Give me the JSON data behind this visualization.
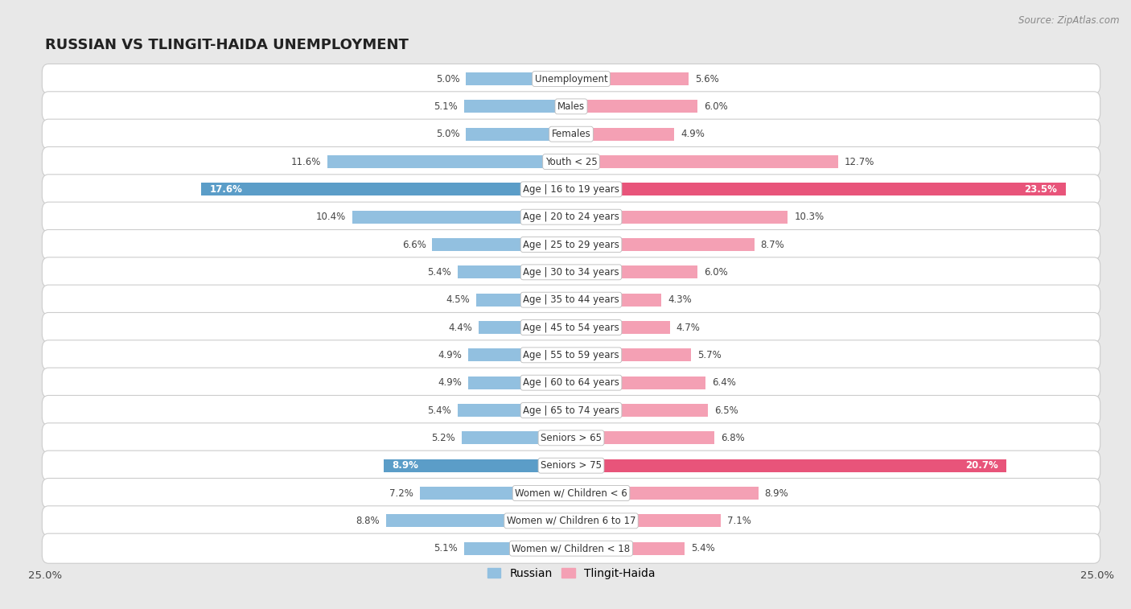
{
  "title": "RUSSIAN VS TLINGIT-HAIDA UNEMPLOYMENT",
  "source": "Source: ZipAtlas.com",
  "categories": [
    "Unemployment",
    "Males",
    "Females",
    "Youth < 25",
    "Age | 16 to 19 years",
    "Age | 20 to 24 years",
    "Age | 25 to 29 years",
    "Age | 30 to 34 years",
    "Age | 35 to 44 years",
    "Age | 45 to 54 years",
    "Age | 55 to 59 years",
    "Age | 60 to 64 years",
    "Age | 65 to 74 years",
    "Seniors > 65",
    "Seniors > 75",
    "Women w/ Children < 6",
    "Women w/ Children 6 to 17",
    "Women w/ Children < 18"
  ],
  "russian": [
    5.0,
    5.1,
    5.0,
    11.6,
    17.6,
    10.4,
    6.6,
    5.4,
    4.5,
    4.4,
    4.9,
    4.9,
    5.4,
    5.2,
    8.9,
    7.2,
    8.8,
    5.1
  ],
  "tlingit": [
    5.6,
    6.0,
    4.9,
    12.7,
    23.5,
    10.3,
    8.7,
    6.0,
    4.3,
    4.7,
    5.7,
    6.4,
    6.5,
    6.8,
    20.7,
    8.9,
    7.1,
    5.4
  ],
  "russian_color": "#92c0e0",
  "tlingit_color": "#f4a0b4",
  "russian_highlight_color": "#5b9dc8",
  "tlingit_highlight_color": "#e8547a",
  "highlight_rows": [
    4,
    14
  ],
  "x_max": 25.0,
  "bg_color": "#e8e8e8",
  "row_bg_color": "#f5f5f5",
  "row_border_color": "#cccccc",
  "title_fontsize": 13,
  "label_fontsize": 8.5,
  "value_fontsize": 8.5,
  "legend_fontsize": 10,
  "axis_tick_fontsize": 9.5
}
